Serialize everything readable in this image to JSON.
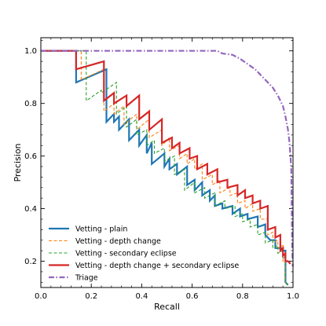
{
  "chart_data": {
    "type": "line",
    "title": "",
    "xlabel": "Recall",
    "ylabel": "Precision",
    "xlim": [
      0.0,
      1.0
    ],
    "ylim": [
      0.1,
      1.05
    ],
    "xticks": [
      0.0,
      0.2,
      0.4,
      0.6,
      0.8,
      1.0
    ],
    "xtick_labels": [
      "0.0",
      "0.2",
      "0.4",
      "0.6",
      "0.8",
      "1.0"
    ],
    "yticks": [
      0.2,
      0.4,
      0.6,
      0.8,
      1.0
    ],
    "ytick_labels": [
      "0.2",
      "0.4",
      "0.6",
      "0.8",
      "1.0"
    ],
    "grid": false,
    "legend_position": "lower-left",
    "series": [
      {
        "name": "Vetting - plain",
        "color": "#1f77b4",
        "style": "solid",
        "points": [
          [
            0.0,
            1.0
          ],
          [
            0.14,
            1.0
          ],
          [
            0.14,
            0.88
          ],
          [
            0.26,
            0.93
          ],
          [
            0.26,
            0.73
          ],
          [
            0.29,
            0.76
          ],
          [
            0.29,
            0.73
          ],
          [
            0.31,
            0.75
          ],
          [
            0.31,
            0.7
          ],
          [
            0.35,
            0.74
          ],
          [
            0.35,
            0.66
          ],
          [
            0.39,
            0.7
          ],
          [
            0.39,
            0.64
          ],
          [
            0.42,
            0.68
          ],
          [
            0.42,
            0.61
          ],
          [
            0.44,
            0.65
          ],
          [
            0.44,
            0.57
          ],
          [
            0.49,
            0.61
          ],
          [
            0.49,
            0.56
          ],
          [
            0.51,
            0.59
          ],
          [
            0.51,
            0.55
          ],
          [
            0.54,
            0.57
          ],
          [
            0.54,
            0.53
          ],
          [
            0.58,
            0.56
          ],
          [
            0.58,
            0.49
          ],
          [
            0.61,
            0.51
          ],
          [
            0.61,
            0.47
          ],
          [
            0.64,
            0.5
          ],
          [
            0.64,
            0.45
          ],
          [
            0.67,
            0.47
          ],
          [
            0.67,
            0.43
          ],
          [
            0.69,
            0.45
          ],
          [
            0.69,
            0.41
          ],
          [
            0.72,
            0.42
          ],
          [
            0.72,
            0.4
          ],
          [
            0.76,
            0.41
          ],
          [
            0.76,
            0.38
          ],
          [
            0.79,
            0.4
          ],
          [
            0.79,
            0.37
          ],
          [
            0.82,
            0.38
          ],
          [
            0.82,
            0.36
          ],
          [
            0.86,
            0.37
          ],
          [
            0.86,
            0.33
          ],
          [
            0.89,
            0.34
          ],
          [
            0.89,
            0.3
          ],
          [
            0.91,
            0.28
          ],
          [
            0.93,
            0.28
          ],
          [
            0.93,
            0.25
          ],
          [
            0.95,
            0.25
          ],
          [
            0.96,
            0.25
          ],
          [
            0.96,
            0.24
          ],
          [
            0.97,
            0.24
          ],
          [
            0.97,
            0.12
          ],
          [
            0.98,
            0.11
          ]
        ]
      },
      {
        "name": "Vetting - depth change",
        "color": "#ff7f0e",
        "style": "dashed",
        "points": [
          [
            0.0,
            1.0
          ],
          [
            0.16,
            1.0
          ],
          [
            0.16,
            0.89
          ],
          [
            0.25,
            0.93
          ],
          [
            0.25,
            0.77
          ],
          [
            0.29,
            0.8
          ],
          [
            0.29,
            0.76
          ],
          [
            0.33,
            0.79
          ],
          [
            0.33,
            0.72
          ],
          [
            0.38,
            0.76
          ],
          [
            0.38,
            0.7
          ],
          [
            0.43,
            0.74
          ],
          [
            0.43,
            0.67
          ],
          [
            0.48,
            0.7
          ],
          [
            0.48,
            0.64
          ],
          [
            0.51,
            0.67
          ],
          [
            0.51,
            0.62
          ],
          [
            0.55,
            0.64
          ],
          [
            0.55,
            0.59
          ],
          [
            0.58,
            0.61
          ],
          [
            0.58,
            0.57
          ],
          [
            0.61,
            0.59
          ],
          [
            0.61,
            0.55
          ],
          [
            0.64,
            0.57
          ],
          [
            0.64,
            0.51
          ],
          [
            0.68,
            0.53
          ],
          [
            0.68,
            0.49
          ],
          [
            0.71,
            0.51
          ],
          [
            0.71,
            0.46
          ],
          [
            0.75,
            0.48
          ],
          [
            0.75,
            0.45
          ],
          [
            0.78,
            0.46
          ],
          [
            0.78,
            0.42
          ],
          [
            0.81,
            0.43
          ],
          [
            0.81,
            0.4
          ],
          [
            0.84,
            0.42
          ],
          [
            0.84,
            0.39
          ],
          [
            0.87,
            0.4
          ],
          [
            0.87,
            0.36
          ],
          [
            0.9,
            0.36
          ],
          [
            0.9,
            0.3
          ],
          [
            0.92,
            0.31
          ],
          [
            0.92,
            0.27
          ],
          [
            0.94,
            0.28
          ],
          [
            0.94,
            0.25
          ],
          [
            0.96,
            0.26
          ],
          [
            0.96,
            0.2
          ],
          [
            0.97,
            0.2
          ],
          [
            0.97,
            0.12
          ],
          [
            0.98,
            0.11
          ]
        ]
      },
      {
        "name": "Vetting - secondary eclipse",
        "color": "#2ca02c",
        "style": "dashed",
        "points": [
          [
            0.0,
            1.0
          ],
          [
            0.18,
            1.0
          ],
          [
            0.18,
            0.81
          ],
          [
            0.24,
            0.85
          ],
          [
            0.24,
            0.84
          ],
          [
            0.3,
            0.88
          ],
          [
            0.3,
            0.76
          ],
          [
            0.34,
            0.79
          ],
          [
            0.34,
            0.71
          ],
          [
            0.38,
            0.74
          ],
          [
            0.38,
            0.68
          ],
          [
            0.42,
            0.7
          ],
          [
            0.42,
            0.64
          ],
          [
            0.45,
            0.66
          ],
          [
            0.45,
            0.61
          ],
          [
            0.49,
            0.63
          ],
          [
            0.49,
            0.58
          ],
          [
            0.53,
            0.6
          ],
          [
            0.53,
            0.53
          ],
          [
            0.57,
            0.55
          ],
          [
            0.57,
            0.47
          ],
          [
            0.61,
            0.5
          ],
          [
            0.61,
            0.46
          ],
          [
            0.65,
            0.48
          ],
          [
            0.65,
            0.44
          ],
          [
            0.69,
            0.46
          ],
          [
            0.69,
            0.41
          ],
          [
            0.73,
            0.43
          ],
          [
            0.73,
            0.4
          ],
          [
            0.77,
            0.41
          ],
          [
            0.77,
            0.37
          ],
          [
            0.8,
            0.38
          ],
          [
            0.8,
            0.35
          ],
          [
            0.83,
            0.36
          ],
          [
            0.83,
            0.33
          ],
          [
            0.86,
            0.34
          ],
          [
            0.86,
            0.3
          ],
          [
            0.89,
            0.31
          ],
          [
            0.89,
            0.27
          ],
          [
            0.92,
            0.28
          ],
          [
            0.92,
            0.25
          ],
          [
            0.94,
            0.26
          ],
          [
            0.94,
            0.23
          ],
          [
            0.96,
            0.24
          ],
          [
            0.96,
            0.21
          ],
          [
            0.97,
            0.22
          ],
          [
            0.97,
            0.12
          ],
          [
            0.98,
            0.11
          ]
        ]
      },
      {
        "name": "Vetting - depth change + secondary eclipse",
        "color": "#d62728",
        "style": "solid",
        "points": [
          [
            0.0,
            1.0
          ],
          [
            0.14,
            1.0
          ],
          [
            0.14,
            0.93
          ],
          [
            0.25,
            0.96
          ],
          [
            0.25,
            0.81
          ],
          [
            0.29,
            0.84
          ],
          [
            0.29,
            0.8
          ],
          [
            0.34,
            0.83
          ],
          [
            0.34,
            0.79
          ],
          [
            0.39,
            0.83
          ],
          [
            0.39,
            0.74
          ],
          [
            0.43,
            0.77
          ],
          [
            0.43,
            0.7
          ],
          [
            0.48,
            0.74
          ],
          [
            0.48,
            0.65
          ],
          [
            0.52,
            0.67
          ],
          [
            0.52,
            0.63
          ],
          [
            0.55,
            0.65
          ],
          [
            0.55,
            0.61
          ],
          [
            0.59,
            0.63
          ],
          [
            0.59,
            0.59
          ],
          [
            0.62,
            0.6
          ],
          [
            0.62,
            0.55
          ],
          [
            0.66,
            0.57
          ],
          [
            0.66,
            0.53
          ],
          [
            0.7,
            0.55
          ],
          [
            0.7,
            0.5
          ],
          [
            0.74,
            0.51
          ],
          [
            0.74,
            0.48
          ],
          [
            0.78,
            0.49
          ],
          [
            0.78,
            0.45
          ],
          [
            0.81,
            0.47
          ],
          [
            0.81,
            0.44
          ],
          [
            0.84,
            0.45
          ],
          [
            0.84,
            0.42
          ],
          [
            0.87,
            0.43
          ],
          [
            0.87,
            0.4
          ],
          [
            0.9,
            0.41
          ],
          [
            0.9,
            0.32
          ],
          [
            0.93,
            0.33
          ],
          [
            0.93,
            0.29
          ],
          [
            0.95,
            0.3
          ],
          [
            0.95,
            0.24
          ],
          [
            0.96,
            0.25
          ],
          [
            0.96,
            0.22
          ],
          [
            0.97,
            0.23
          ],
          [
            0.97,
            0.2
          ],
          [
            0.98,
            0.2
          ],
          [
            0.99,
            0.19
          ]
        ]
      },
      {
        "name": "Triage",
        "color": "#9467bd",
        "style": "dashdot",
        "points": [
          [
            0.0,
            1.0
          ],
          [
            0.7,
            1.0
          ],
          [
            0.72,
            0.99
          ],
          [
            0.76,
            0.985
          ],
          [
            0.79,
            0.97
          ],
          [
            0.82,
            0.95
          ],
          [
            0.85,
            0.93
          ],
          [
            0.88,
            0.9
          ],
          [
            0.9,
            0.88
          ],
          [
            0.92,
            0.86
          ],
          [
            0.94,
            0.83
          ],
          [
            0.96,
            0.79
          ],
          [
            0.97,
            0.75
          ],
          [
            0.98,
            0.7
          ],
          [
            0.985,
            0.66
          ],
          [
            0.99,
            0.6
          ],
          [
            0.993,
            0.55
          ],
          [
            0.995,
            0.4
          ],
          [
            0.997,
            0.25
          ],
          [
            0.999,
            0.18
          ]
        ]
      }
    ]
  }
}
